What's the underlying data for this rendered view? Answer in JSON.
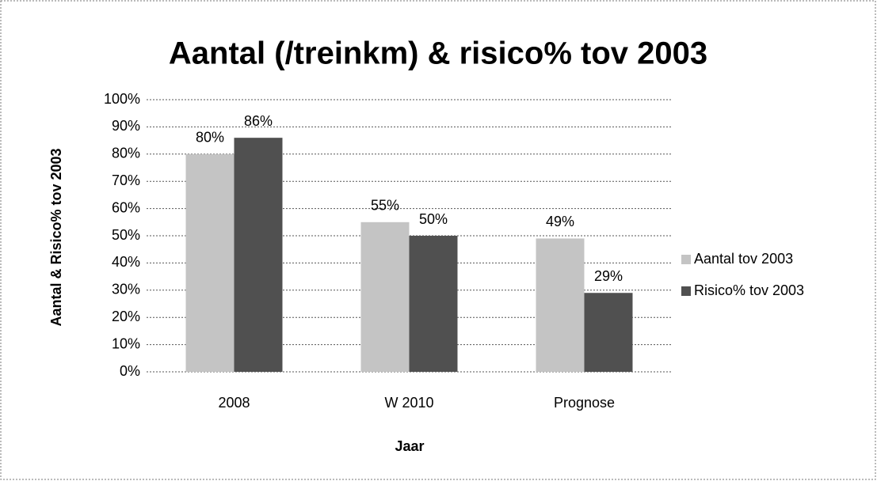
{
  "chart_data": {
    "type": "bar",
    "title": "Aantal (/treinkm) & risico% tov 2003",
    "x_label": "Jaar",
    "y_label": "Aantal & Risico% tov 2003",
    "categories": [
      "2008",
      "W 2010",
      "Prognose"
    ],
    "series": [
      {
        "name": "Aantal tov 2003",
        "color": "#c4c4c4",
        "values": [
          80,
          55,
          49
        ],
        "value_labels": [
          "80%",
          "55%",
          "49%"
        ]
      },
      {
        "name": "Risico% tov 2003",
        "color": "#505050",
        "values": [
          86,
          50,
          29
        ],
        "value_labels": [
          "86%",
          "50%",
          "29%"
        ]
      }
    ],
    "ylim": [
      0,
      100
    ],
    "yticks": [
      {
        "value": 0,
        "label": "0%"
      },
      {
        "value": 10,
        "label": "10%"
      },
      {
        "value": 20,
        "label": "20%"
      },
      {
        "value": 30,
        "label": "30%"
      },
      {
        "value": 40,
        "label": "40%"
      },
      {
        "value": 50,
        "label": "50%"
      },
      {
        "value": 60,
        "label": "60%"
      },
      {
        "value": 70,
        "label": "70%"
      },
      {
        "value": 80,
        "label": "80%"
      },
      {
        "value": 90,
        "label": "90%"
      },
      {
        "value": 100,
        "label": "100%"
      }
    ],
    "grid": true,
    "legend": "right"
  }
}
